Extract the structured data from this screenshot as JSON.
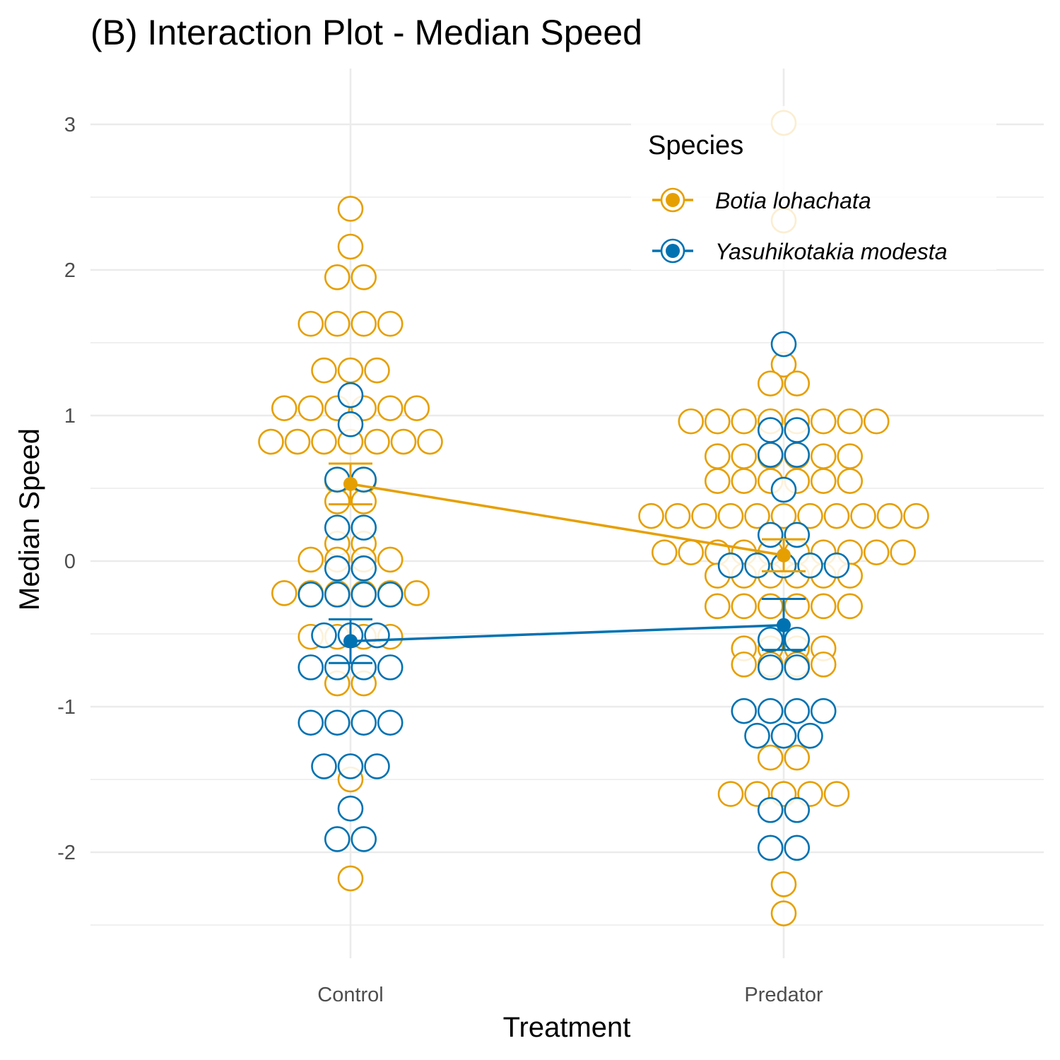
{
  "chart_data": {
    "type": "scatter",
    "title": "(B) Interaction Plot - Median Speed",
    "xlabel": "Treatment",
    "ylabel": "Median Speed",
    "categories": [
      "Control",
      "Predator"
    ],
    "ylim": [
      -2.6,
      3.35
    ],
    "yticks": [
      -2,
      -1,
      0,
      1,
      2,
      3
    ],
    "ytick_labels": [
      "-2",
      "-1",
      "0",
      "1",
      "2",
      "3"
    ],
    "grid": true,
    "legend": {
      "title": "Species",
      "position": "top-right"
    },
    "series": [
      {
        "name": "Botia lohachata",
        "color": "#E69F00",
        "points": {
          "Control": [
            {
              "y": 2.42,
              "n": 1
            },
            {
              "y": 2.16,
              "n": 1
            },
            {
              "y": 1.95,
              "n": 2
            },
            {
              "y": 1.63,
              "n": 4
            },
            {
              "y": 1.31,
              "n": 3
            },
            {
              "y": 1.05,
              "n": 6
            },
            {
              "y": 0.82,
              "n": 7
            },
            {
              "y": 0.55,
              "n": 2
            },
            {
              "y": 0.41,
              "n": 2
            },
            {
              "y": 0.12,
              "n": 2
            },
            {
              "y": 0.01,
              "n": 4
            },
            {
              "y": -0.22,
              "n": 6
            },
            {
              "y": -0.52,
              "n": 4
            },
            {
              "y": -0.84,
              "n": 2
            },
            {
              "y": -1.5,
              "n": 1
            },
            {
              "y": -2.18,
              "n": 1
            }
          ],
          "Predator": [
            {
              "y": 3.01,
              "n": 1
            },
            {
              "y": 2.34,
              "n": 1
            },
            {
              "y": 1.35,
              "n": 1
            },
            {
              "y": 1.22,
              "n": 2
            },
            {
              "y": 0.96,
              "n": 8
            },
            {
              "y": 0.72,
              "n": 6
            },
            {
              "y": 0.55,
              "n": 6
            },
            {
              "y": 0.31,
              "n": 11
            },
            {
              "y": 0.06,
              "n": 10
            },
            {
              "y": -0.1,
              "n": 6
            },
            {
              "y": -0.31,
              "n": 6
            },
            {
              "y": -0.6,
              "n": 4
            },
            {
              "y": -0.71,
              "n": 4
            },
            {
              "y": -1.35,
              "n": 2
            },
            {
              "y": -1.6,
              "n": 5
            },
            {
              "y": -2.22,
              "n": 1
            },
            {
              "y": -2.42,
              "n": 1
            }
          ]
        },
        "mean": {
          "Control": 0.53,
          "Predator": 0.04
        },
        "error": {
          "Control": [
            0.39,
            0.67
          ],
          "Predator": [
            -0.07,
            0.15
          ]
        }
      },
      {
        "name": "Yasuhikotakia modesta",
        "color": "#0072B2",
        "points": {
          "Control": [
            {
              "y": 1.14,
              "n": 1
            },
            {
              "y": 0.94,
              "n": 1
            },
            {
              "y": 0.56,
              "n": 2
            },
            {
              "y": 0.23,
              "n": 2
            },
            {
              "y": -0.05,
              "n": 2
            },
            {
              "y": -0.23,
              "n": 4
            },
            {
              "y": -0.51,
              "n": 3
            },
            {
              "y": -0.73,
              "n": 4
            },
            {
              "y": -1.11,
              "n": 4
            },
            {
              "y": -1.41,
              "n": 3
            },
            {
              "y": -1.7,
              "n": 1
            },
            {
              "y": -1.91,
              "n": 2
            }
          ],
          "Predator": [
            {
              "y": 1.49,
              "n": 1
            },
            {
              "y": 0.9,
              "n": 2
            },
            {
              "y": 0.73,
              "n": 2
            },
            {
              "y": 0.49,
              "n": 1
            },
            {
              "y": 0.18,
              "n": 2
            },
            {
              "y": -0.03,
              "n": 5
            },
            {
              "y": -0.54,
              "n": 2
            },
            {
              "y": -0.73,
              "n": 2
            },
            {
              "y": -1.03,
              "n": 4
            },
            {
              "y": -1.2,
              "n": 3
            },
            {
              "y": -1.71,
              "n": 2
            },
            {
              "y": -1.97,
              "n": 2
            }
          ]
        },
        "mean": {
          "Control": -0.55,
          "Predator": -0.44
        },
        "error": {
          "Control": [
            -0.7,
            -0.4
          ],
          "Predator": [
            -0.61,
            -0.26
          ]
        }
      }
    ]
  }
}
